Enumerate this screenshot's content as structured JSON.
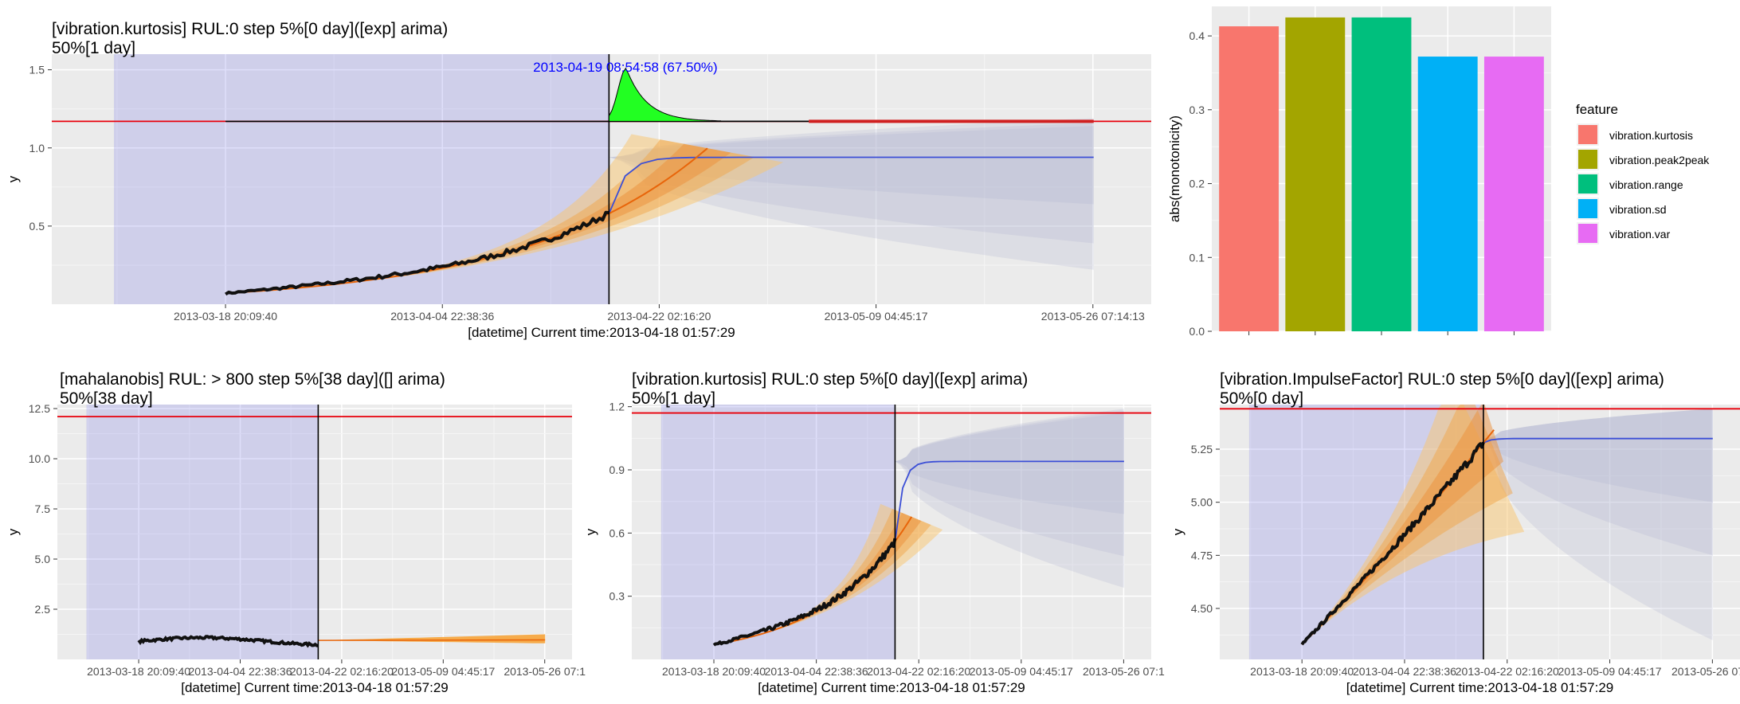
{
  "chart_data": [
    {
      "id": "p1",
      "type": "line",
      "title_line1": "[vibration.kurtosis] RUL:0 step 5%[0 day]([exp] arima)",
      "title_line2": "50%[1 day]",
      "xlabel": "[datetime] Current time:2013-04-18 01:57:29",
      "ylabel": "y",
      "x_ticks": [
        "2013-03-18 20:09:40",
        "2013-04-04 22:38:36",
        "2013-04-22 02:16:20",
        "2013-05-09 04:45:17",
        "2013-05-26 07:14:13"
      ],
      "y_ticks": [
        "0.5",
        "1.0",
        "1.5"
      ],
      "xlim": [
        -13.7,
        55.6
      ],
      "ylim": [
        0,
        1.6
      ],
      "current_time_day": 30.24,
      "threshold": 1.17,
      "shade_start_day": -8.8,
      "forecast_end_day": 68.46,
      "forecast_mean_level": 0.94,
      "annotation": "2013-04-19 08:54:58 (67.50%)",
      "annotation_day": 31.53,
      "history": {
        "start": 0,
        "start_value": 0.07,
        "end_value": 0.58
      },
      "arima_bands": {
        "band95_width_end": 0.72,
        "band80_width_end": 0.4
      }
    },
    {
      "id": "p2",
      "type": "line",
      "title_line1": "[mahalanobis] RUL: > 800 step 5%[38 day]([] arima)",
      "title_line2": "50%[38 day]",
      "xlabel": "[datetime] Current time:2013-04-18 01:57:29",
      "ylabel": "y",
      "x_ticks": [
        "2013-03-18 20:09:40",
        "2013-04-04 22:38:36",
        "2013-04-22 02:16:20",
        "2013-05-09 04:45:17",
        "2013-05-26 07:1"
      ],
      "y_ticks": [
        "2.5",
        "5.0",
        "7.5",
        "10.0",
        "12.5"
      ],
      "ylim": [
        0,
        12.7
      ],
      "threshold": 12.1,
      "history_level": 0.9,
      "forecast_level": 0.95
    },
    {
      "id": "p3",
      "type": "line",
      "title_line1": "[vibration.kurtosis] RUL:0 step 5%[0 day]([exp] arima)",
      "title_line2": "50%[1 day]",
      "xlabel": "[datetime] Current time:2013-04-18 01:57:29",
      "ylabel": "y",
      "x_ticks": [
        "2013-03-18 20:09:40",
        "2013-04-04 22:38:36",
        "2013-04-22 02:16:20",
        "2013-05-09 04:45:17",
        "2013-05-26 07:1"
      ],
      "y_ticks": [
        "0.3",
        "0.6",
        "0.9",
        "1.2"
      ],
      "ylim": [
        0,
        1.21
      ],
      "threshold": 1.17,
      "forecast_mean_level": 0.94
    },
    {
      "id": "p4",
      "type": "line",
      "title_line1": "[vibration.ImpulseFactor] RUL:0 step 5%[0 day]([exp] arima)",
      "title_line2": "50%[0 day]",
      "xlabel": "[datetime] Current time:2013-04-18 01:57:29",
      "ylabel": "y",
      "x_ticks": [
        "2013-03-18 20:09:40",
        "2013-04-04 22:38:36",
        "2013-04-22 02:16:20",
        "2013-05-09 04:45:17",
        "2013-05-26 07:1"
      ],
      "y_ticks": [
        "4.50",
        "4.75",
        "5.00",
        "5.25"
      ],
      "ylim": [
        4.26,
        5.46
      ],
      "threshold": 5.44,
      "forecast_mean_level": 5.3
    },
    {
      "id": "bar",
      "type": "bar",
      "ylabel": "abs(monotonicity)",
      "y_ticks": [
        "0.0",
        "0.1",
        "0.2",
        "0.3",
        "0.4"
      ],
      "ylim": [
        0,
        0.44
      ],
      "legend_title": "feature",
      "legend_position": "right",
      "categories": [
        "vibration.kurtosis",
        "vibration.peak2peak",
        "vibration.range",
        "vibration.sd",
        "vibration.var"
      ],
      "values": [
        0.413,
        0.425,
        0.425,
        0.372,
        0.372
      ],
      "colors": [
        "#F8766D",
        "#A3A500",
        "#00BF7D",
        "#00B0F6",
        "#E76BF3"
      ]
    }
  ]
}
